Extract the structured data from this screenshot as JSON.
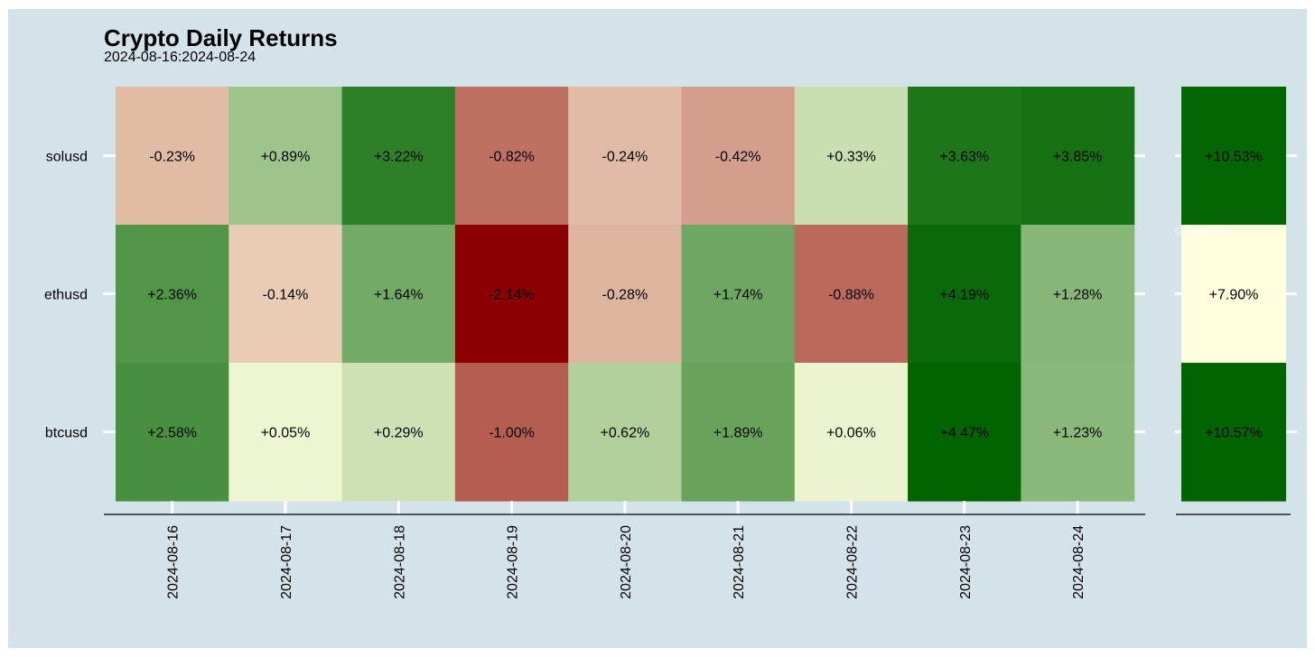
{
  "chart_data": {
    "type": "heatmap",
    "title": "Crypto Daily Returns",
    "subtitle": "2024-08-16:2024-08-24",
    "rows": [
      "solusd",
      "ethusd",
      "btcusd"
    ],
    "columns": [
      "2024-08-16",
      "2024-08-17",
      "2024-08-18",
      "2024-08-19",
      "2024-08-20",
      "2024-08-21",
      "2024-08-22",
      "2024-08-23",
      "2024-08-24"
    ],
    "values": [
      [
        -0.23,
        0.89,
        3.22,
        -0.82,
        -0.24,
        -0.42,
        0.33,
        3.63,
        3.85
      ],
      [
        2.36,
        -0.14,
        1.64,
        -2.14,
        -0.28,
        1.74,
        -0.88,
        4.19,
        1.28
      ],
      [
        2.58,
        0.05,
        0.29,
        -1.0,
        0.62,
        1.89,
        0.06,
        4.47,
        1.23
      ]
    ],
    "labels": [
      [
        "-0.23%",
        "+0.89%",
        "+3.22%",
        "-0.82%",
        "-0.24%",
        "-0.42%",
        "+0.33%",
        "+3.63%",
        "+3.85%"
      ],
      [
        "+2.36%",
        "-0.14%",
        "+1.64%",
        "-2.14%",
        "-0.28%",
        "+1.74%",
        "-0.88%",
        "+4.19%",
        "+1.28%"
      ],
      [
        "+2.58%",
        "+0.05%",
        "+0.29%",
        "-1.00%",
        "+0.62%",
        "+1.89%",
        "+0.06%",
        "+4.47%",
        "+1.23%"
      ]
    ],
    "totals": [
      10.53,
      7.9,
      10.57
    ],
    "total_labels": [
      "+10.53%",
      "+7.90%",
      "+10.57%"
    ],
    "watermark": "@StockViz",
    "color_scale": {
      "neg": "#8b0000",
      "zero": "#ffffe0",
      "pos": "#006400"
    },
    "background": "#d4e3ea",
    "grid": false
  }
}
